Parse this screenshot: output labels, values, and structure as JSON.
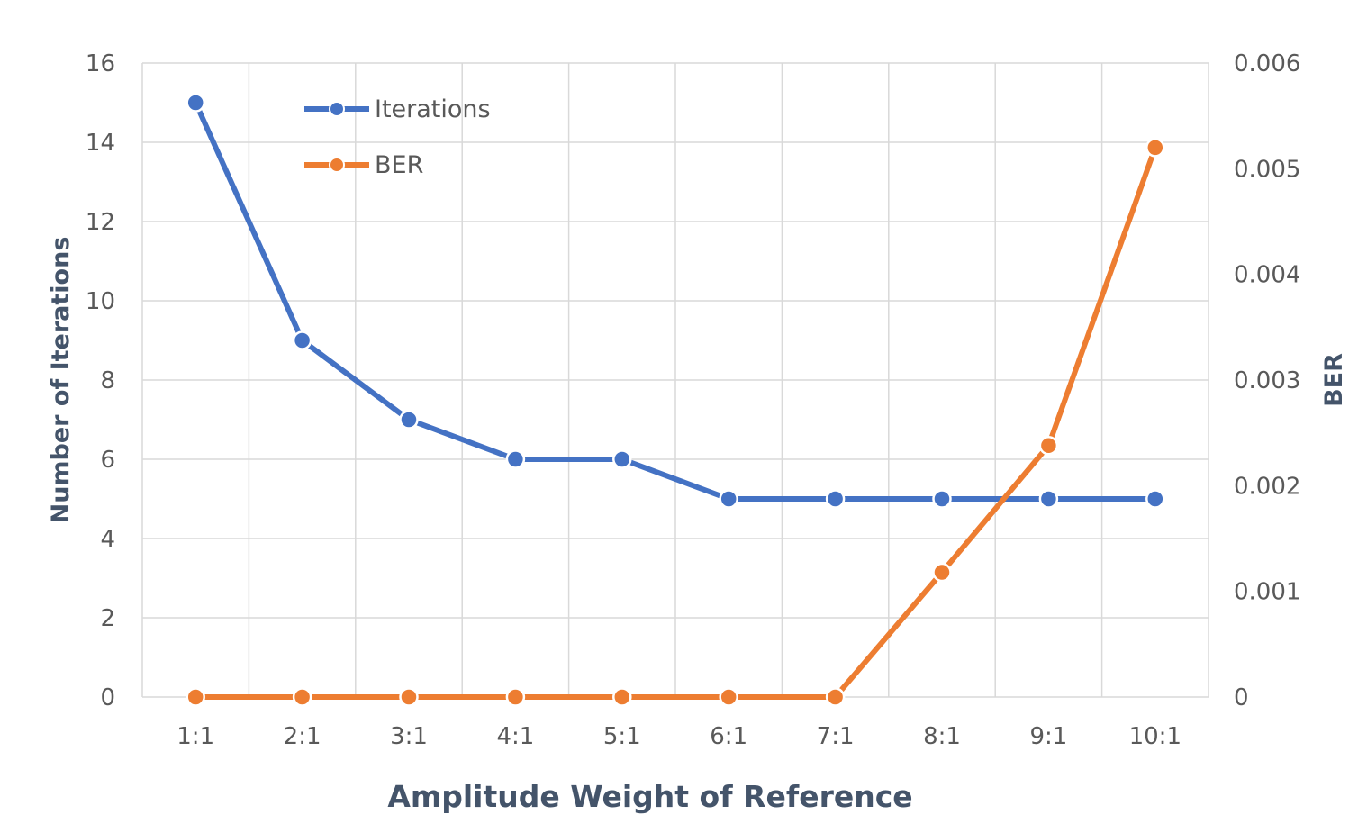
{
  "chart_data": {
    "type": "line",
    "categories": [
      "1:1",
      "2:1",
      "3:1",
      "4:1",
      "5:1",
      "6:1",
      "7:1",
      "8:1",
      "9:1",
      "10:1"
    ],
    "xlabel": "Amplitude Weight of Reference",
    "ylabel": "Number of Iterations",
    "y2label": "BER",
    "ylim": [
      0,
      16
    ],
    "y2lim": [
      0,
      0.006
    ],
    "yticks": [
      "0",
      "2",
      "4",
      "6",
      "8",
      "10",
      "12",
      "14",
      "16"
    ],
    "y2ticks": [
      "0",
      "0.001",
      "0.002",
      "0.003",
      "0.004",
      "0.005",
      "0.006"
    ],
    "grid": true,
    "legend_position": "top-left",
    "series": [
      {
        "name": "Iterations",
        "axis": "left",
        "color": "#4472c4",
        "values": [
          15,
          9,
          7,
          6,
          6,
          5,
          5,
          5,
          5,
          5
        ]
      },
      {
        "name": "BER",
        "axis": "right",
        "color": "#ed7d31",
        "values": [
          0,
          0,
          0,
          0,
          0,
          0,
          0,
          0.00118,
          0.00238,
          0.0052
        ]
      }
    ]
  }
}
